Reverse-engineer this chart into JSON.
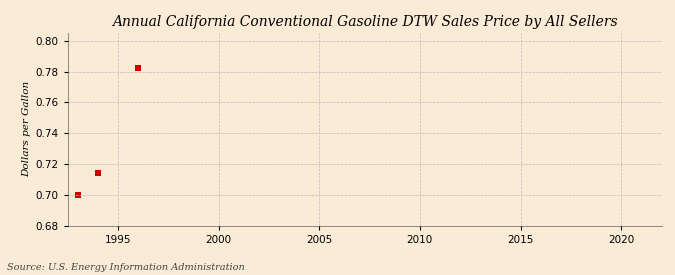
{
  "title": "Annual California Conventional Gasoline DTW Sales Price by All Sellers",
  "ylabel": "Dollars per Gallon",
  "source": "Source: U.S. Energy Information Administration",
  "background_color": "#faebd7",
  "plot_background_color": "#faebd7",
  "data_x": [
    1993,
    1994,
    1996
  ],
  "data_y": [
    0.7,
    0.714,
    0.782
  ],
  "marker_color": "#cc0000",
  "marker_size": 4,
  "xlim": [
    1992.5,
    2022
  ],
  "ylim": [
    0.68,
    0.805
  ],
  "xticks": [
    1995,
    2000,
    2005,
    2010,
    2015,
    2020
  ],
  "yticks": [
    0.68,
    0.7,
    0.72,
    0.74,
    0.76,
    0.78,
    0.8
  ],
  "grid_color": "#bbbbbb",
  "title_fontsize": 10,
  "label_fontsize": 7.5,
  "tick_fontsize": 7.5,
  "source_fontsize": 7
}
